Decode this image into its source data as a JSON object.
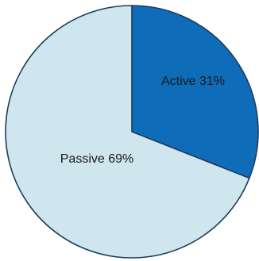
{
  "chart_data": {
    "type": "pie",
    "categories": [
      "Active",
      "Passive"
    ],
    "values": [
      31,
      69
    ],
    "labels": [
      "Active  31%",
      "Passive  69%"
    ],
    "colors": [
      "#0f6cb8",
      "#cfe6ee"
    ],
    "edge_color": "#1c3e5c",
    "start": "12 o'clock",
    "direction": "clockwise"
  }
}
